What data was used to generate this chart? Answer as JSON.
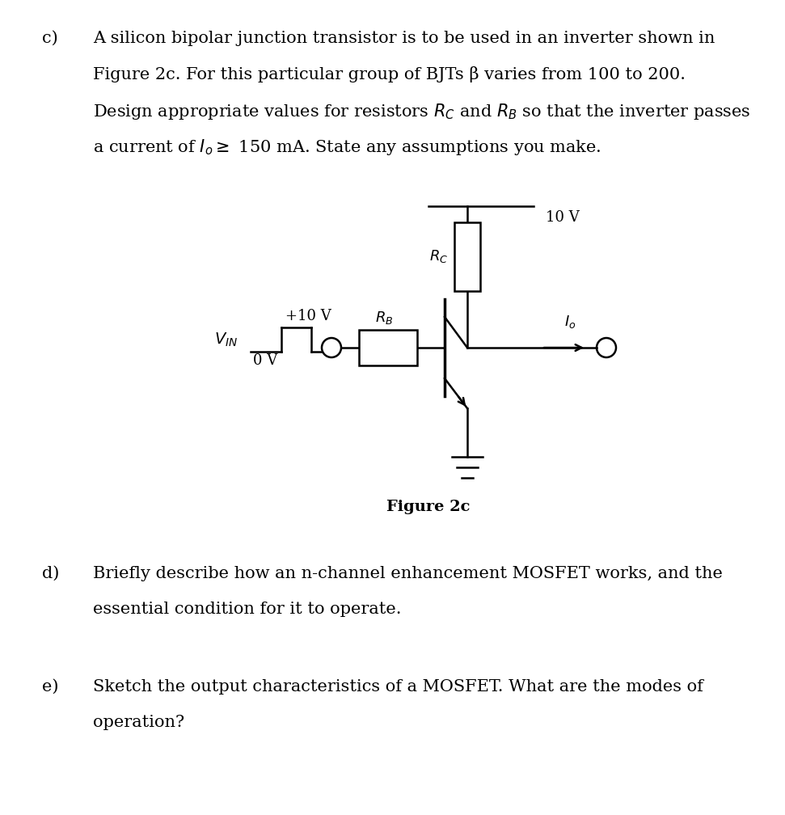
{
  "bg_color": "#ffffff",
  "text_color": "#000000",
  "line_color": "#000000",
  "fs_body": 15,
  "fs_circuit": 13,
  "fs_caption": 14,
  "part_c_label": "c)",
  "part_c_line1": "A silicon bipolar junction transistor is to be used in an inverter shown in",
  "part_c_line2": "Figure 2c. For this particular group of BJTs β varies from 100 to 200.",
  "part_c_line3": "Design appropriate values for resistors $R_C$ and $R_B$ so that the inverter passes",
  "part_c_line4": "a current of $I_o \\geq$ 150 mA. State any assumptions you make.",
  "part_d_label": "d)",
  "part_d_line1": "Briefly describe how an n-channel enhancement MOSFET works, and the",
  "part_d_line2": "essential condition for it to operate.",
  "part_e_label": "e)",
  "part_e_line1": "Sketch the output characteristics of a MOSFET. What are the modes of",
  "part_e_line2": "operation?",
  "figure_caption": "Figure 2c",
  "vcc_label": "10 V",
  "vin_high": "+10 V",
  "vin_low": "0 V",
  "vin_label": "$V_{IN}$",
  "rc_label": "$R_C$",
  "rb_label": "$R_B$",
  "io_label": "$I_o$"
}
